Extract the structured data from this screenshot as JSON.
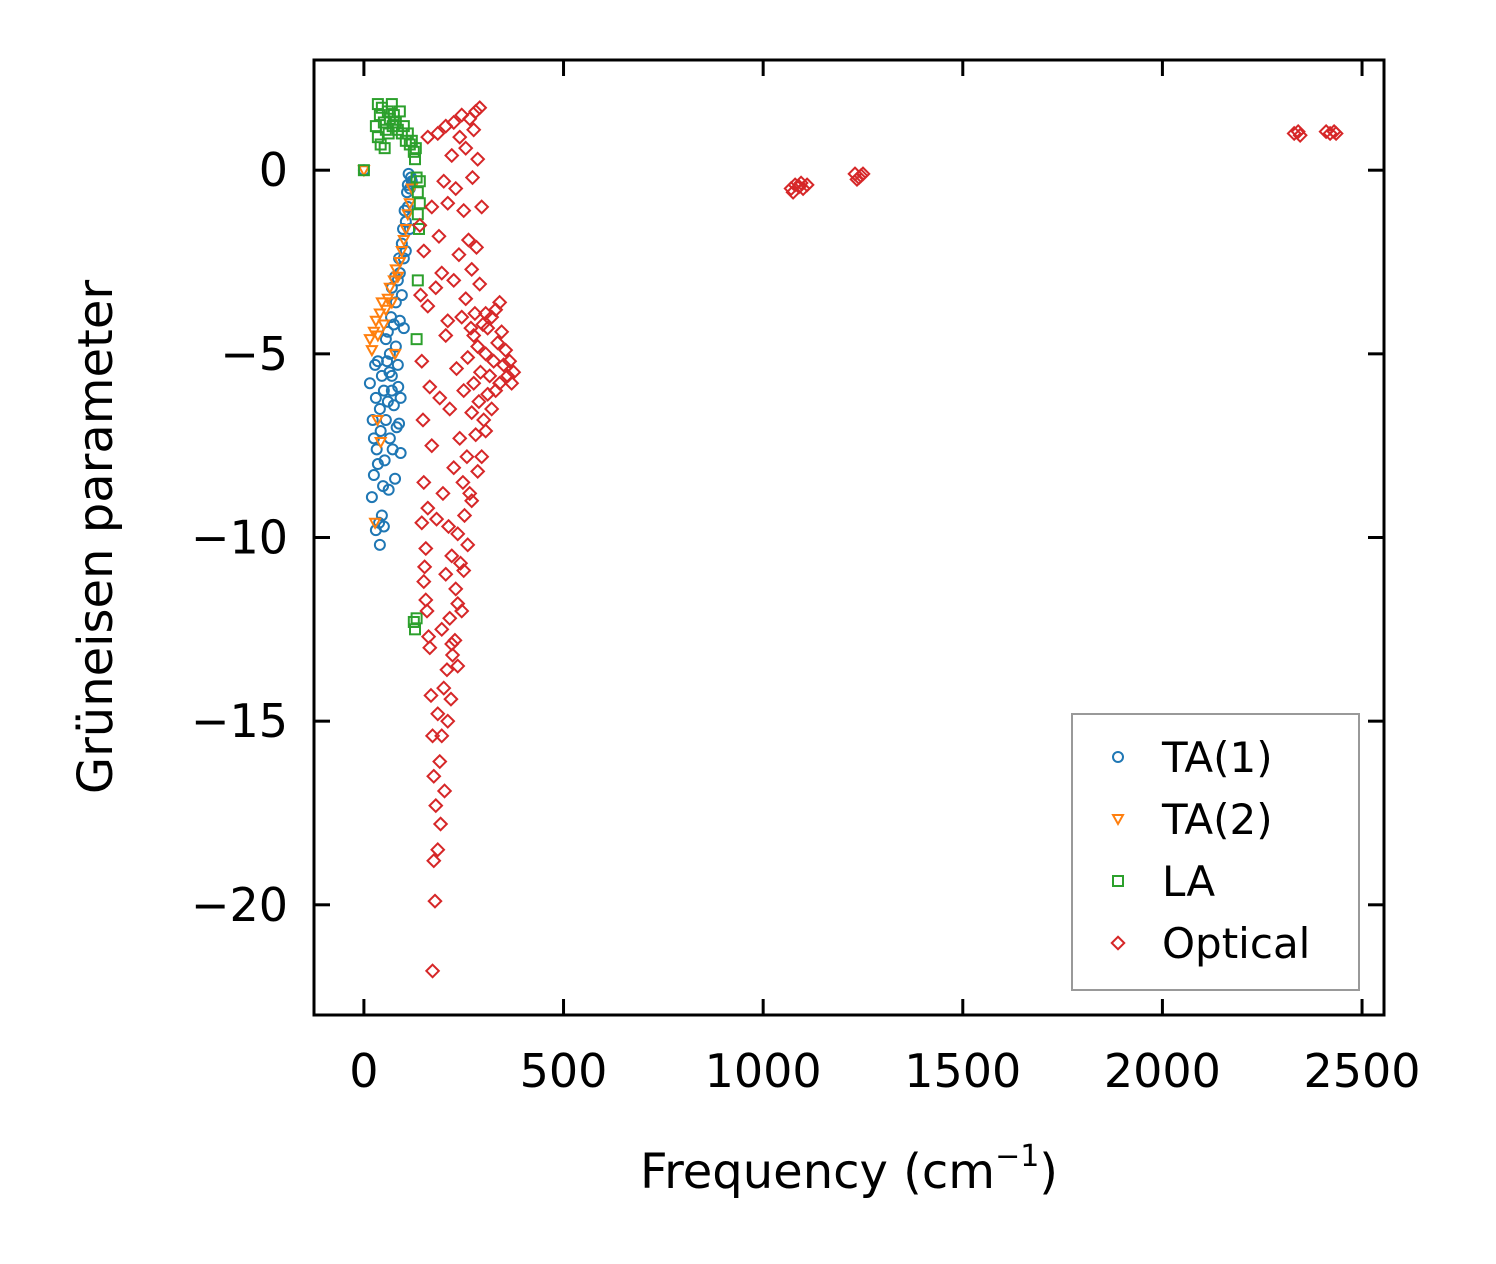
{
  "chart_data": {
    "type": "scatter",
    "title": "",
    "xlabel": "Frequency (cm",
    "xlabel_sup": "−1",
    "xlabel_close": ")",
    "ylabel": "Grüneisen parameter",
    "xlim": [
      -125,
      2555
    ],
    "ylim": [
      -23,
      3
    ],
    "xticks": [
      0,
      500,
      1000,
      1500,
      2000,
      2500
    ],
    "yticks": [
      0,
      -5,
      -10,
      -15,
      -20
    ],
    "xtick_labels": [
      "0",
      "500",
      "1000",
      "1500",
      "2000",
      "2500"
    ],
    "ytick_labels": [
      "0",
      "−5",
      "−10",
      "−15",
      "−20"
    ],
    "legend_position": "lower-right",
    "series": [
      {
        "name": "TA(1)",
        "marker": "circle",
        "color": "#1f77b4",
        "points": [
          [
            0,
            0
          ],
          [
            15,
            -5.8
          ],
          [
            20,
            -8.9
          ],
          [
            22,
            -6.8
          ],
          [
            25,
            -7.3
          ],
          [
            25,
            -8.3
          ],
          [
            28,
            -5.3
          ],
          [
            30,
            -9.8
          ],
          [
            30,
            -6.2
          ],
          [
            32,
            -7.6
          ],
          [
            35,
            -5.2
          ],
          [
            35,
            -8.0
          ],
          [
            38,
            -9.6
          ],
          [
            40,
            -6.5
          ],
          [
            40,
            -10.2
          ],
          [
            42,
            -7.1
          ],
          [
            45,
            -5.6
          ],
          [
            45,
            -9.4
          ],
          [
            48,
            -8.6
          ],
          [
            50,
            -6.0
          ],
          [
            50,
            -9.7
          ],
          [
            52,
            -7.9
          ],
          [
            55,
            -4.6
          ],
          [
            55,
            -6.8
          ],
          [
            58,
            -5.2
          ],
          [
            60,
            -4.4
          ],
          [
            60,
            -6.3
          ],
          [
            62,
            -8.7
          ],
          [
            65,
            -5.0
          ],
          [
            65,
            -7.3
          ],
          [
            68,
            -4.0
          ],
          [
            70,
            -3.2
          ],
          [
            70,
            -5.6
          ],
          [
            72,
            -7.6
          ],
          [
            75,
            -4.2
          ],
          [
            75,
            -6.4
          ],
          [
            78,
            -2.9
          ],
          [
            80,
            -3.6
          ],
          [
            80,
            -4.8
          ],
          [
            82,
            -7.0
          ],
          [
            85,
            -3.0
          ],
          [
            85,
            -5.3
          ],
          [
            88,
            -2.4
          ],
          [
            90,
            -2.8
          ],
          [
            90,
            -4.1
          ],
          [
            92,
            -6.2
          ],
          [
            95,
            -2.0
          ],
          [
            95,
            -3.4
          ],
          [
            98,
            -1.6
          ],
          [
            100,
            -2.4
          ],
          [
            100,
            -4.3
          ],
          [
            102,
            -1.1
          ],
          [
            105,
            -1.4
          ],
          [
            105,
            -2.2
          ],
          [
            108,
            -0.6
          ],
          [
            110,
            -1.0
          ],
          [
            110,
            -0.4
          ],
          [
            112,
            -0.1
          ],
          [
            115,
            -0.5
          ],
          [
            115,
            -1.6
          ],
          [
            118,
            -0.2
          ],
          [
            120,
            -0.3
          ],
          [
            88,
            -6.9
          ],
          [
            92,
            -7.7
          ],
          [
            78,
            -8.4
          ],
          [
            70,
            -6.0
          ],
          [
            64,
            -5.5
          ],
          [
            86,
            -5.9
          ]
        ]
      },
      {
        "name": "TA(2)",
        "marker": "triangle-down",
        "color": "#ff7f0e",
        "points": [
          [
            0,
            0
          ],
          [
            15,
            -4.6
          ],
          [
            20,
            -4.9
          ],
          [
            25,
            -4.4
          ],
          [
            30,
            -4.1
          ],
          [
            35,
            -4.5
          ],
          [
            40,
            -3.9
          ],
          [
            45,
            -3.6
          ],
          [
            50,
            -4.2
          ],
          [
            55,
            -3.8
          ],
          [
            60,
            -3.5
          ],
          [
            65,
            -3.2
          ],
          [
            70,
            -3.6
          ],
          [
            75,
            -3.0
          ],
          [
            80,
            -2.7
          ],
          [
            85,
            -2.9
          ],
          [
            90,
            -2.5
          ],
          [
            95,
            -2.2
          ],
          [
            100,
            -1.9
          ],
          [
            105,
            -1.6
          ],
          [
            110,
            -1.2
          ],
          [
            115,
            -0.9
          ],
          [
            120,
            -0.5
          ],
          [
            28,
            -9.6
          ],
          [
            34,
            -6.8
          ],
          [
            42,
            -7.4
          ],
          [
            78,
            -5.0
          ]
        ]
      },
      {
        "name": "LA",
        "marker": "square",
        "color": "#2ca02c",
        "points": [
          [
            0,
            0
          ],
          [
            30,
            1.2
          ],
          [
            35,
            1.8
          ],
          [
            35,
            0.9
          ],
          [
            40,
            1.5
          ],
          [
            42,
            0.7
          ],
          [
            45,
            1.7
          ],
          [
            50,
            1.3
          ],
          [
            52,
            0.6
          ],
          [
            55,
            1.1
          ],
          [
            60,
            1.6
          ],
          [
            62,
            1.0
          ],
          [
            65,
            1.4
          ],
          [
            70,
            1.8
          ],
          [
            72,
            1.2
          ],
          [
            75,
            1.5
          ],
          [
            80,
            1.3
          ],
          [
            85,
            1.1
          ],
          [
            90,
            1.6
          ],
          [
            95,
            1.0
          ],
          [
            100,
            1.2
          ],
          [
            105,
            0.8
          ],
          [
            110,
            1.0
          ],
          [
            115,
            0.7
          ],
          [
            120,
            0.8
          ],
          [
            125,
            0.5
          ],
          [
            128,
            0.3
          ],
          [
            130,
            0.6
          ],
          [
            132,
            -0.2
          ],
          [
            135,
            -0.6
          ],
          [
            135,
            -1.2
          ],
          [
            138,
            -1.6
          ],
          [
            140,
            -0.9
          ],
          [
            140,
            -0.3
          ],
          [
            132,
            -4.6
          ],
          [
            135,
            -3.0
          ],
          [
            128,
            -12.5
          ],
          [
            132,
            -12.2
          ],
          [
            125,
            -12.3
          ]
        ]
      },
      {
        "name": "Optical",
        "marker": "diamond",
        "color": "#d62728",
        "points": [
          [
            140,
            -1.5
          ],
          [
            142,
            -3.4
          ],
          [
            145,
            -5.2
          ],
          [
            148,
            -6.8
          ],
          [
            150,
            -2.2
          ],
          [
            150,
            -8.5
          ],
          [
            152,
            -10.8
          ],
          [
            155,
            -11.7
          ],
          [
            158,
            -12.0
          ],
          [
            160,
            -3.7
          ],
          [
            160,
            -9.2
          ],
          [
            162,
            -12.7
          ],
          [
            165,
            -13.0
          ],
          [
            165,
            -5.9
          ],
          [
            168,
            -14.3
          ],
          [
            170,
            -1.0
          ],
          [
            170,
            -7.5
          ],
          [
            172,
            -15.4
          ],
          [
            175,
            -16.5
          ],
          [
            175,
            -18.8
          ],
          [
            178,
            -19.9
          ],
          [
            172,
            -21.8
          ],
          [
            180,
            -3.2
          ],
          [
            180,
            -17.3
          ],
          [
            182,
            -9.5
          ],
          [
            185,
            -18.5
          ],
          [
            185,
            -14.8
          ],
          [
            188,
            -1.8
          ],
          [
            190,
            -16.1
          ],
          [
            190,
            -6.2
          ],
          [
            192,
            -17.8
          ],
          [
            195,
            -12.5
          ],
          [
            195,
            -15.4
          ],
          [
            198,
            -8.8
          ],
          [
            200,
            -0.3
          ],
          [
            200,
            -14.1
          ],
          [
            202,
            -16.9
          ],
          [
            205,
            -11.0
          ],
          [
            205,
            -4.5
          ],
          [
            208,
            -13.6
          ],
          [
            210,
            -0.9
          ],
          [
            210,
            -15.0
          ],
          [
            212,
            -9.7
          ],
          [
            215,
            -12.2
          ],
          [
            215,
            -6.5
          ],
          [
            218,
            -14.4
          ],
          [
            220,
            0.4
          ],
          [
            220,
            -10.5
          ],
          [
            222,
            -13.2
          ],
          [
            225,
            -3.0
          ],
          [
            225,
            -8.1
          ],
          [
            228,
            -12.8
          ],
          [
            230,
            -0.5
          ],
          [
            230,
            -11.4
          ],
          [
            232,
            -5.4
          ],
          [
            235,
            -9.9
          ],
          [
            235,
            -13.5
          ],
          [
            238,
            -2.3
          ],
          [
            240,
            0.9
          ],
          [
            240,
            -7.3
          ],
          [
            242,
            -10.7
          ],
          [
            245,
            -4.0
          ],
          [
            245,
            -12.0
          ],
          [
            248,
            -8.5
          ],
          [
            250,
            -1.1
          ],
          [
            250,
            -6.0
          ],
          [
            252,
            -9.4
          ],
          [
            255,
            0.6
          ],
          [
            255,
            -3.5
          ],
          [
            258,
            -7.8
          ],
          [
            260,
            -5.1
          ],
          [
            260,
            -10.2
          ],
          [
            262,
            -1.9
          ],
          [
            265,
            1.4
          ],
          [
            265,
            -8.8
          ],
          [
            268,
            -4.3
          ],
          [
            270,
            -2.7
          ],
          [
            270,
            -6.6
          ],
          [
            272,
            -0.2
          ],
          [
            275,
            1.1
          ],
          [
            275,
            -5.8
          ],
          [
            278,
            -3.9
          ],
          [
            280,
            -7.2
          ],
          [
            280,
            1.6
          ],
          [
            282,
            -2.1
          ],
          [
            285,
            -4.8
          ],
          [
            285,
            0.3
          ],
          [
            288,
            -6.3
          ],
          [
            290,
            1.7
          ],
          [
            290,
            -3.1
          ],
          [
            292,
            -5.5
          ],
          [
            295,
            -1.0
          ],
          [
            298,
            -4.2
          ],
          [
            300,
            -6.8
          ],
          [
            305,
            -5.0
          ],
          [
            310,
            -4.3
          ],
          [
            310,
            -6.1
          ],
          [
            315,
            -5.6
          ],
          [
            320,
            -4.0
          ],
          [
            320,
            -6.5
          ],
          [
            325,
            -5.2
          ],
          [
            330,
            -3.8
          ],
          [
            330,
            -6.0
          ],
          [
            335,
            -4.7
          ],
          [
            340,
            -3.6
          ],
          [
            340,
            -5.8
          ],
          [
            345,
            -4.4
          ],
          [
            350,
            -5.3
          ],
          [
            355,
            -4.9
          ],
          [
            360,
            -5.6
          ],
          [
            365,
            -5.2
          ],
          [
            370,
            -5.8
          ],
          [
            375,
            -5.5
          ],
          [
            305,
            -7.1
          ],
          [
            295,
            -7.8
          ],
          [
            285,
            -8.2
          ],
          [
            270,
            -9.0
          ],
          [
            250,
            -10.9
          ],
          [
            235,
            -11.8
          ],
          [
            220,
            -12.9
          ],
          [
            160,
            0.9
          ],
          [
            185,
            1.0
          ],
          [
            205,
            1.2
          ],
          [
            225,
            1.3
          ],
          [
            245,
            1.5
          ],
          [
            150,
            -11.2
          ],
          [
            155,
            -10.3
          ],
          [
            145,
            -9.6
          ],
          [
            195,
            -2.8
          ],
          [
            210,
            -4.1
          ],
          [
            275,
            -4.5
          ],
          [
            305,
            -3.9
          ],
          [
            1070,
            -0.5
          ],
          [
            1080,
            -0.4
          ],
          [
            1090,
            -0.45
          ],
          [
            1100,
            -0.5
          ],
          [
            1110,
            -0.4
          ],
          [
            1075,
            -0.6
          ],
          [
            1095,
            -0.35
          ],
          [
            1230,
            -0.1
          ],
          [
            1240,
            -0.2
          ],
          [
            1245,
            -0.15
          ],
          [
            1235,
            -0.25
          ],
          [
            1250,
            -0.1
          ],
          [
            2330,
            1.0
          ],
          [
            2340,
            1.05
          ],
          [
            2345,
            0.95
          ],
          [
            2410,
            1.05
          ],
          [
            2420,
            1.0
          ],
          [
            2430,
            1.05
          ],
          [
            2435,
            1.0
          ]
        ]
      }
    ]
  }
}
